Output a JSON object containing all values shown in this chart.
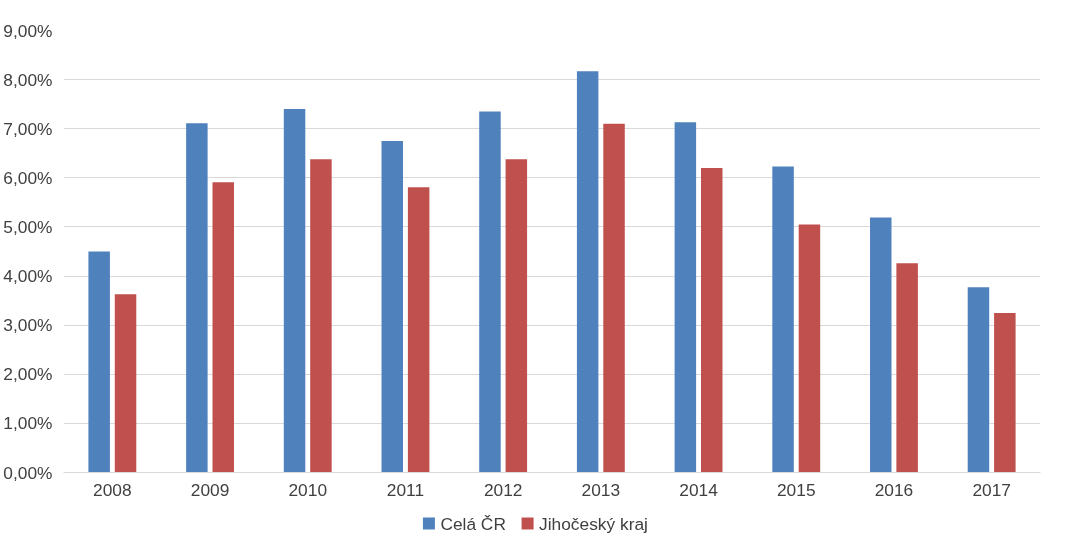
{
  "chart_data": {
    "type": "bar",
    "categories": [
      "2008",
      "2009",
      "2010",
      "2011",
      "2012",
      "2013",
      "2014",
      "2015",
      "2016",
      "2017"
    ],
    "series": [
      {
        "name": "Celá ČR",
        "color": "#4f81bd",
        "values": [
          4.5,
          7.11,
          7.4,
          6.75,
          7.35,
          8.17,
          7.13,
          6.23,
          5.19,
          3.77
        ]
      },
      {
        "name": "Jihočeský kraj",
        "color": "#c0504d",
        "values": [
          3.63,
          5.91,
          6.38,
          5.81,
          6.38,
          7.1,
          6.2,
          5.05,
          4.26,
          3.25
        ]
      }
    ],
    "ylim": [
      0,
      9
    ],
    "yticks": [
      {
        "value": 0,
        "label": "0,00%"
      },
      {
        "value": 1,
        "label": "1,00%"
      },
      {
        "value": 2,
        "label": "2,00%"
      },
      {
        "value": 3,
        "label": "3,00%"
      },
      {
        "value": 4,
        "label": "4,00%"
      },
      {
        "value": 5,
        "label": "5,00%"
      },
      {
        "value": 6,
        "label": "6,00%"
      },
      {
        "value": 7,
        "label": "7,00%"
      },
      {
        "value": 8,
        "label": "8,00%"
      },
      {
        "value": 9,
        "label": "9,00%"
      }
    ],
    "grid": "y",
    "legend": "bottom"
  }
}
